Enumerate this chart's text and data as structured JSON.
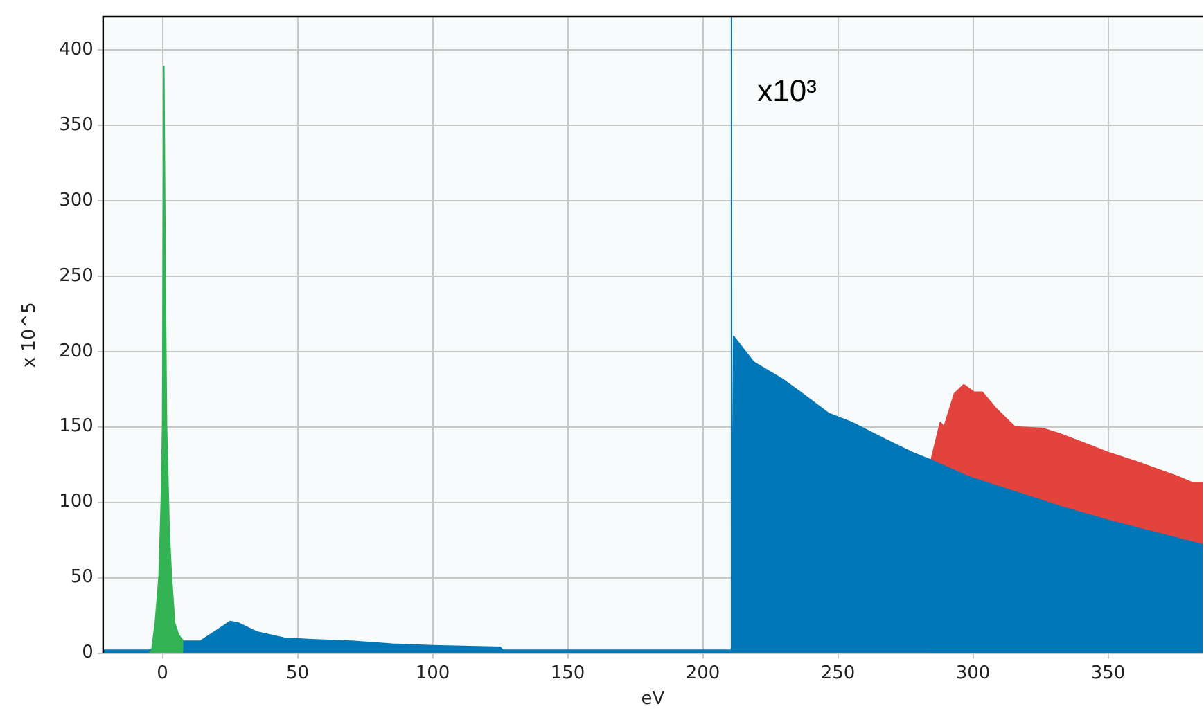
{
  "chart_data": {
    "type": "area",
    "xlabel": "eV",
    "ylabel": "x 10^5",
    "xlim": [
      -22,
      385
    ],
    "ylim": [
      0,
      422
    ],
    "xticks": [
      0,
      50,
      100,
      150,
      200,
      250,
      300,
      350
    ],
    "yticks": [
      0,
      50,
      100,
      150,
      200,
      250,
      300,
      350,
      400
    ],
    "grid": true,
    "legend": false,
    "marker": "none",
    "annotations": [
      "x10³"
    ],
    "series": [
      {
        "color": "#33b354",
        "x": [
          -5,
          -4,
          -2.7,
          -1.3,
          -0.5,
          0,
          0.5,
          1,
          1.5,
          2.5,
          3.3,
          4.5,
          6,
          7.3,
          7.4
        ],
        "values": [
          0,
          2,
          20,
          51,
          100,
          150,
          389,
          250,
          150,
          80,
          51,
          20,
          12,
          9,
          0
        ]
      },
      {
        "color": "#0277b8",
        "x": [
          -22,
          -5,
          7,
          14,
          20,
          25,
          28,
          35,
          45,
          55,
          70,
          85,
          100,
          125,
          126,
          150,
          210.5,
          210.6,
          210.7,
          211.4,
          218.8,
          229.2,
          236.1,
          246.5,
          255.1,
          267.2,
          277.5,
          284.5,
          298.3,
          315.5,
          332.8,
          350.1,
          367.4,
          385
        ],
        "values": [
          2,
          2,
          8,
          8,
          15,
          21,
          20,
          14,
          10,
          9,
          8,
          6,
          5,
          4,
          2,
          2,
          2,
          422,
          2,
          210,
          193,
          182,
          173,
          159,
          153,
          142,
          133,
          128,
          117,
          107,
          97,
          88,
          80,
          72
        ]
      },
      {
        "color": "#e2433d",
        "x": [
          284.5,
          287.9,
          289.3,
          293.1,
          296.6,
          300.4,
          303.5,
          308.6,
          315.5,
          325.9,
          332.8,
          341.5,
          350.1,
          360.5,
          376,
          381.2,
          385
        ],
        "values": [
          128,
          153,
          150,
          172,
          178,
          173,
          173,
          162,
          150,
          149,
          145,
          139,
          133,
          127,
          117,
          113,
          113
        ]
      }
    ]
  }
}
